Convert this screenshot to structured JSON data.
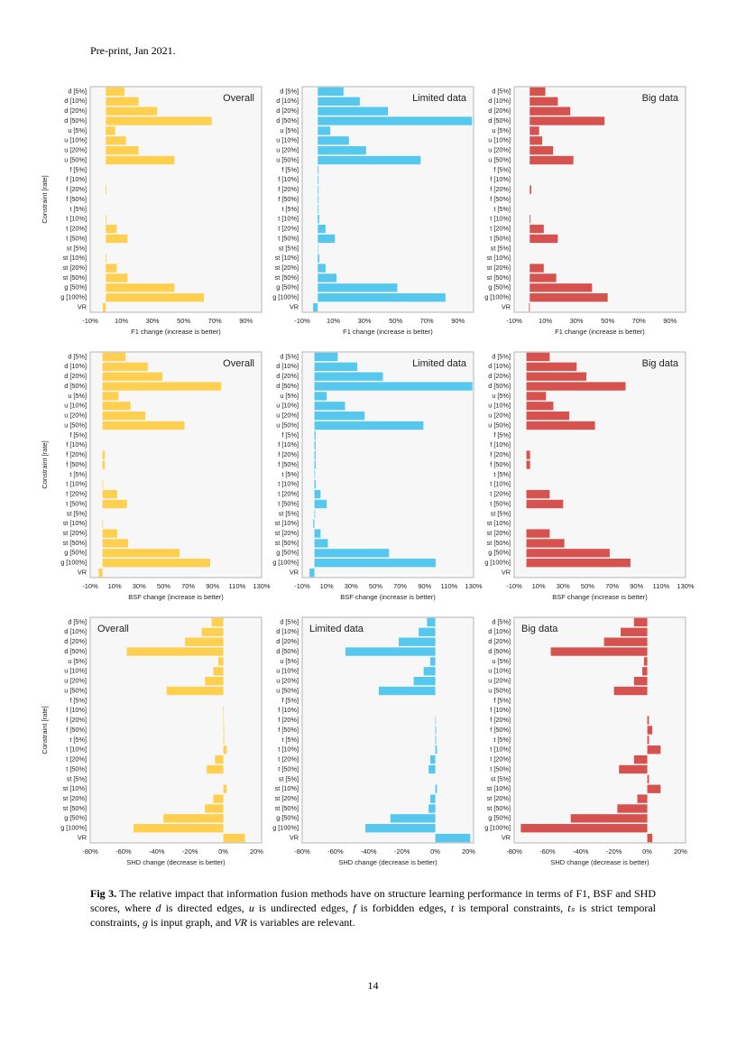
{
  "header": "Pre-print, Jan 2021.",
  "caption": {
    "label": "Fig 3.",
    "parts": [
      " The relative impact that information fusion methods have on structure learning performance in terms of F1, BSF and SHD scores, where ",
      "d",
      " is directed edges, ",
      "u",
      " is undirected edges, ",
      "f",
      " is forbidden edges, ",
      "t",
      " is temporal constraints, ",
      "tₛ",
      " is strict temporal constraints, ",
      "g",
      " is input graph, and ",
      "VR",
      " is variables are relevant."
    ]
  },
  "page_number": "14",
  "chart_data": [
    {
      "type": "bar",
      "orientation": "horizontal",
      "title": "Overall",
      "title_position": "top-right",
      "xlabel": "F1 change (increase is better)",
      "ylabel": "Constraint [rate]",
      "color": "#ffd04f",
      "categories": [
        "d [5%]",
        "d [10%]",
        "d [20%]",
        "d [50%]",
        "u [5%]",
        "u [10%]",
        "u [20%]",
        "u [50%]",
        "f [5%]",
        "f [10%]",
        "f [20%]",
        "f [50%]",
        "t [5%]",
        "t [10%]",
        "t [20%]",
        "t [50%]",
        "st [5%]",
        "st [10%]",
        "st [20%]",
        "st [50%]",
        "g [50%]",
        "g [100%]",
        "VR"
      ],
      "values": [
        12,
        21,
        33,
        68,
        6,
        13,
        21,
        44,
        0,
        0,
        0.5,
        0,
        0,
        0.5,
        7,
        14,
        0,
        0.5,
        7,
        14,
        44,
        63,
        -2
      ],
      "xlim": [
        -10,
        100
      ],
      "xticks": [
        {
          "value": -10,
          "label": "-10%"
        },
        {
          "value": 10,
          "label": "10%"
        },
        {
          "value": 30,
          "label": "30%"
        },
        {
          "value": 50,
          "label": "50%"
        },
        {
          "value": 70,
          "label": "70%"
        },
        {
          "value": 90,
          "label": "90%"
        }
      ],
      "grid": false
    },
    {
      "type": "bar",
      "orientation": "horizontal",
      "title": "Limited data",
      "title_position": "top-right",
      "xlabel": "F1 change (increase is better)",
      "color": "#56c8ee",
      "categories": [
        "d [5%]",
        "d [10%]",
        "d [20%]",
        "d [50%]",
        "u [5%]",
        "u [10%]",
        "u [20%]",
        "u [50%]",
        "f [5%]",
        "f [10%]",
        "f [20%]",
        "f [50%]",
        "t [5%]",
        "t [10%]",
        "t [20%]",
        "t [50%]",
        "st [5%]",
        "st [10%]",
        "st [20%]",
        "st [50%]",
        "g [50%]",
        "g [100%]",
        "VR"
      ],
      "values": [
        16.5,
        27,
        45,
        99,
        8,
        20,
        31,
        66,
        0.5,
        0.5,
        0.5,
        0.5,
        0.5,
        1,
        5,
        11,
        0.3,
        1,
        5,
        12,
        51,
        82,
        -3
      ],
      "xlim": [
        -10,
        100
      ],
      "xticks": [
        {
          "value": -10,
          "label": "-10%"
        },
        {
          "value": 10,
          "label": "10%"
        },
        {
          "value": 30,
          "label": "30%"
        },
        {
          "value": 50,
          "label": "50%"
        },
        {
          "value": 70,
          "label": "70%"
        },
        {
          "value": 90,
          "label": "90%"
        }
      ],
      "grid": false
    },
    {
      "type": "bar",
      "orientation": "horizontal",
      "title": "Big data",
      "title_position": "top-right",
      "xlabel": "F1 change (increase is better)",
      "color": "#d6524f",
      "categories": [
        "d [5%]",
        "d [10%]",
        "d [20%]",
        "d [50%]",
        "u [5%]",
        "u [10%]",
        "u [20%]",
        "u [50%]",
        "f [5%]",
        "f [10%]",
        "f [20%]",
        "f [50%]",
        "t [5%]",
        "t [10%]",
        "t [20%]",
        "t [50%]",
        "st [5%]",
        "st [10%]",
        "st [20%]",
        "st [50%]",
        "g [50%]",
        "g [100%]",
        "VR"
      ],
      "values": [
        10,
        18,
        26,
        48,
        6,
        8,
        15,
        28,
        0,
        0,
        1,
        0,
        0,
        0.5,
        9,
        18,
        0,
        0,
        9,
        17,
        40,
        50,
        -0.5
      ],
      "xlim": [
        -10,
        100
      ],
      "xticks": [
        {
          "value": -10,
          "label": "-10%"
        },
        {
          "value": 10,
          "label": "10%"
        },
        {
          "value": 30,
          "label": "30%"
        },
        {
          "value": 50,
          "label": "50%"
        },
        {
          "value": 70,
          "label": "70%"
        },
        {
          "value": 90,
          "label": "90%"
        }
      ],
      "grid": false
    },
    {
      "type": "bar",
      "orientation": "horizontal",
      "title": "Overall",
      "title_position": "top-right",
      "xlabel": "BSF change (increase is better)",
      "ylabel": "Constraint [rate]",
      "color": "#ffd04f",
      "categories": [
        "d [5%]",
        "d [10%]",
        "d [20%]",
        "d [50%]",
        "u [5%]",
        "u [10%]",
        "u [20%]",
        "u [50%]",
        "f [5%]",
        "f [10%]",
        "f [20%]",
        "f [50%]",
        "t [5%]",
        "t [10%]",
        "t [20%]",
        "t [50%]",
        "st [5%]",
        "st [10%]",
        "st [20%]",
        "st [50%]",
        "g [50%]",
        "g [100%]",
        "VR"
      ],
      "values": [
        19,
        37,
        49,
        97,
        13,
        23,
        35,
        67,
        0,
        0,
        2,
        2,
        0,
        0.5,
        12,
        20,
        0,
        0.5,
        12,
        21,
        63,
        88,
        -3
      ],
      "xlim": [
        -10,
        130
      ],
      "xticks": [
        {
          "value": -10,
          "label": "-10%"
        },
        {
          "value": 10,
          "label": "10%"
        },
        {
          "value": 30,
          "label": "30%"
        },
        {
          "value": 50,
          "label": "50%"
        },
        {
          "value": 70,
          "label": "70%"
        },
        {
          "value": 90,
          "label": "90%"
        },
        {
          "value": 110,
          "label": "110%"
        },
        {
          "value": 130,
          "label": "130%"
        }
      ],
      "grid": false
    },
    {
      "type": "bar",
      "orientation": "horizontal",
      "title": "Limited data",
      "title_position": "top-right",
      "xlabel": "BSF change (increase is better)",
      "color": "#56c8ee",
      "categories": [
        "d [5%]",
        "d [10%]",
        "d [20%]",
        "d [50%]",
        "u [5%]",
        "u [10%]",
        "u [20%]",
        "u [50%]",
        "f [5%]",
        "f [10%]",
        "f [20%]",
        "f [50%]",
        "t [5%]",
        "t [10%]",
        "t [20%]",
        "t [50%]",
        "st [5%]",
        "st [10%]",
        "st [20%]",
        "st [50%]",
        "g [50%]",
        "g [100%]",
        "VR"
      ],
      "values": [
        19,
        35,
        56,
        129,
        10,
        25,
        41,
        89,
        1,
        1,
        1,
        1,
        0.5,
        1,
        5,
        10,
        0.5,
        -1,
        5,
        11,
        61,
        99,
        -4
      ],
      "xlim": [
        -10,
        130
      ],
      "xticks": [
        {
          "value": -10,
          "label": "-10%"
        },
        {
          "value": 10,
          "label": "10%"
        },
        {
          "value": 30,
          "label": "30%"
        },
        {
          "value": 50,
          "label": "50%"
        },
        {
          "value": 70,
          "label": "70%"
        },
        {
          "value": 90,
          "label": "90%"
        },
        {
          "value": 110,
          "label": "110%"
        },
        {
          "value": 130,
          "label": "130%"
        }
      ],
      "grid": false
    },
    {
      "type": "bar",
      "orientation": "horizontal",
      "title": "Big data",
      "title_position": "top-right",
      "xlabel": "BSF change (increase is better)",
      "color": "#d6524f",
      "categories": [
        "d [5%]",
        "d [10%]",
        "d [20%]",
        "d [50%]",
        "u [5%]",
        "u [10%]",
        "u [20%]",
        "u [50%]",
        "f [5%]",
        "f [10%]",
        "f [20%]",
        "f [50%]",
        "t [5%]",
        "t [10%]",
        "t [20%]",
        "t [50%]",
        "st [5%]",
        "st [10%]",
        "st [20%]",
        "st [50%]",
        "g [50%]",
        "g [100%]",
        "VR"
      ],
      "values": [
        19,
        41,
        49,
        81,
        16,
        22,
        35,
        56,
        0,
        0,
        3,
        3,
        0,
        0,
        19,
        30,
        0,
        0,
        19,
        31,
        68,
        85,
        0
      ],
      "xlim": [
        -10,
        130
      ],
      "xticks": [
        {
          "value": -10,
          "label": "-10%"
        },
        {
          "value": 10,
          "label": "10%"
        },
        {
          "value": 30,
          "label": "30%"
        },
        {
          "value": 50,
          "label": "50%"
        },
        {
          "value": 70,
          "label": "70%"
        },
        {
          "value": 90,
          "label": "90%"
        },
        {
          "value": 110,
          "label": "110%"
        },
        {
          "value": 130,
          "label": "130%"
        }
      ],
      "grid": false
    },
    {
      "type": "bar",
      "orientation": "horizontal",
      "title": "Overall",
      "title_position": "top-left",
      "xlabel": "SHD change (decrease is better)",
      "ylabel": "Constraint [rate]",
      "color": "#ffd04f",
      "categories": [
        "d [5%]",
        "d [10%]",
        "d [20%]",
        "d [50%]",
        "u [5%]",
        "u [10%]",
        "u [20%]",
        "u [50%]",
        "f [5%]",
        "f [10%]",
        "f [20%]",
        "f [50%]",
        "t [5%]",
        "t [10%]",
        "t [20%]",
        "t [50%]",
        "st [5%]",
        "st [10%]",
        "st [20%]",
        "st [50%]",
        "g [50%]",
        "g [100%]",
        "VR"
      ],
      "values": [
        -7,
        -13,
        -23,
        -58,
        -3,
        -6,
        -11,
        -34,
        0,
        -0.3,
        0.3,
        0.5,
        0.5,
        2,
        -5,
        -10,
        0,
        2,
        -6,
        -11,
        -36,
        -54,
        13
      ],
      "xlim": [
        -80,
        23
      ],
      "xticks": [
        {
          "value": -80,
          "label": "-80%"
        },
        {
          "value": -60,
          "label": "-60%"
        },
        {
          "value": -40,
          "label": "-40%"
        },
        {
          "value": -20,
          "label": "-20%"
        },
        {
          "value": 0,
          "label": "0%"
        },
        {
          "value": 20,
          "label": "20%"
        }
      ],
      "grid": false
    },
    {
      "type": "bar",
      "orientation": "horizontal",
      "title": "Limited data",
      "title_position": "top-left",
      "xlabel": "SHD change (decrease is better)",
      "color": "#56c8ee",
      "categories": [
        "d [5%]",
        "d [10%]",
        "d [20%]",
        "d [50%]",
        "u [5%]",
        "u [10%]",
        "u [20%]",
        "u [50%]",
        "f [5%]",
        "f [10%]",
        "f [20%]",
        "f [50%]",
        "t [5%]",
        "t [10%]",
        "t [20%]",
        "t [50%]",
        "st [5%]",
        "st [10%]",
        "st [20%]",
        "st [50%]",
        "g [50%]",
        "g [100%]",
        "VR"
      ],
      "values": [
        -5,
        -10,
        -22,
        -54,
        -3,
        -7,
        -13,
        -34,
        0,
        0,
        0.3,
        0.5,
        0.5,
        1,
        -3,
        -4,
        0,
        1,
        -3,
        -4,
        -27,
        -42,
        21
      ],
      "xlim": [
        -80,
        23
      ],
      "xticks": [
        {
          "value": -80,
          "label": "-80%"
        },
        {
          "value": -60,
          "label": "-60%"
        },
        {
          "value": -40,
          "label": "-40%"
        },
        {
          "value": -20,
          "label": "-20%"
        },
        {
          "value": 0,
          "label": "0%"
        },
        {
          "value": 20,
          "label": "20%"
        }
      ],
      "grid": false
    },
    {
      "type": "bar",
      "orientation": "horizontal",
      "title": "Big data",
      "title_position": "top-left",
      "xlabel": "SHD change (decrease is better)",
      "color": "#d6524f",
      "categories": [
        "d [5%]",
        "d [10%]",
        "d [20%]",
        "d [50%]",
        "u [5%]",
        "u [10%]",
        "u [20%]",
        "u [50%]",
        "f [5%]",
        "f [10%]",
        "f [20%]",
        "f [50%]",
        "t [5%]",
        "t [10%]",
        "t [20%]",
        "t [50%]",
        "st [5%]",
        "st [10%]",
        "st [20%]",
        "st [50%]",
        "g [50%]",
        "g [100%]",
        "VR"
      ],
      "values": [
        -8,
        -16,
        -26,
        -58,
        -2,
        -3,
        -8,
        -20,
        0,
        0,
        1,
        3,
        1,
        8,
        -8,
        -17,
        1,
        8,
        -6,
        -18,
        -46,
        -76,
        3
      ],
      "xlim": [
        -80,
        23
      ],
      "xticks": [
        {
          "value": -80,
          "label": "-80%"
        },
        {
          "value": -60,
          "label": "-60%"
        },
        {
          "value": -40,
          "label": "-40%"
        },
        {
          "value": -20,
          "label": "-20%"
        },
        {
          "value": 0,
          "label": "0%"
        },
        {
          "value": 20,
          "label": "20%"
        }
      ],
      "grid": false
    }
  ]
}
